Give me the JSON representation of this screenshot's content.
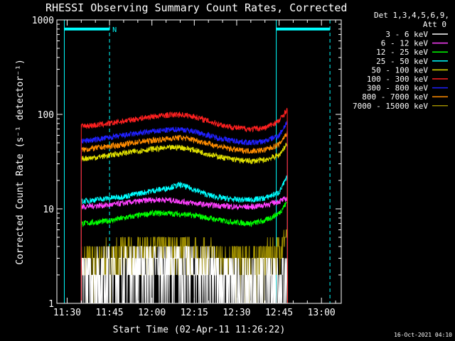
{
  "chart_data": {
    "type": "line",
    "title": "RHESSI Observing Summary Count Rates, Corrected",
    "xlabel": "Start Time (02-Apr-11 11:26:22)",
    "ylabel": "Corrected Count Rate (s⁻¹ detector⁻¹)",
    "yscale": "log",
    "ylim": [
      1,
      1000
    ],
    "xlim": [
      "11:26:22",
      "13:07:00"
    ],
    "x_ticks": [
      "11:30",
      "11:45",
      "12:00",
      "12:15",
      "12:30",
      "12:45",
      "13:00"
    ],
    "y_ticks": [
      "1",
      "10",
      "100",
      "1000"
    ],
    "legend_header": [
      "Det 1,3,4,5,6,9,",
      "Att 0"
    ],
    "legend_position": "right",
    "footer_timestamp": "16-Oct-2021 04:10",
    "annotations": [
      {
        "text": "N",
        "time": "11:45"
      }
    ],
    "markers": {
      "cyan_solid_lines": [
        "11:29",
        "12:44"
      ],
      "cyan_dashed_lines": [
        "11:45",
        "13:03"
      ],
      "data_interval": [
        "11:35",
        "12:48"
      ],
      "bar_level": 800,
      "bar_segments": [
        [
          "11:29",
          "11:45"
        ],
        [
          "12:44",
          "13:03"
        ]
      ]
    },
    "x": [
      "11:35",
      "11:40",
      "11:45",
      "11:50",
      "11:55",
      "12:00",
      "12:05",
      "12:10",
      "12:15",
      "12:20",
      "12:25",
      "12:30",
      "12:35",
      "12:40",
      "12:45",
      "12:48"
    ],
    "series": [
      {
        "name": "3 - 6 keV",
        "color": "#ffffff",
        "values": [
          2.0,
          2.0,
          2.2,
          2.4,
          2.5,
          2.6,
          2.6,
          2.5,
          2.4,
          2.2,
          1.8,
          1.6,
          1.6,
          1.7,
          2.0,
          2.3
        ]
      },
      {
        "name": "6 - 12 keV",
        "color": "#ff40ff",
        "values": [
          10.5,
          10.8,
          11.0,
          11.5,
          12.0,
          12.5,
          12.5,
          12.0,
          11.5,
          11.0,
          10.8,
          10.5,
          10.5,
          11.0,
          12.0,
          13.0
        ]
      },
      {
        "name": "12 - 25 keV",
        "color": "#00ff00",
        "values": [
          7.0,
          7.2,
          7.5,
          8.0,
          8.5,
          9.0,
          9.0,
          8.8,
          8.5,
          8.0,
          7.5,
          7.2,
          7.0,
          7.5,
          9.0,
          12.0
        ]
      },
      {
        "name": "25 - 50 keV",
        "color": "#00ffff",
        "values": [
          12.0,
          12.5,
          13.0,
          13.5,
          14.5,
          15.5,
          16.5,
          18.0,
          16.0,
          14.0,
          13.0,
          12.5,
          12.5,
          13.0,
          15.0,
          22.0
        ]
      },
      {
        "name": "50 - 100 keV",
        "color": "#e0e000",
        "values": [
          34,
          35,
          37,
          39,
          41,
          43,
          44,
          45,
          42,
          38,
          35,
          33,
          32,
          33,
          37,
          50
        ]
      },
      {
        "name": "100 - 300 keV",
        "color": "#ff2020",
        "values": [
          75,
          77,
          80,
          85,
          90,
          95,
          98,
          100,
          95,
          85,
          77,
          72,
          70,
          72,
          85,
          115
        ]
      },
      {
        "name": "300 - 800 keV",
        "color": "#2020ff",
        "values": [
          52,
          54,
          57,
          60,
          63,
          66,
          68,
          70,
          66,
          60,
          55,
          52,
          50,
          52,
          60,
          85
        ]
      },
      {
        "name": "800 - 7000 keV",
        "color": "#ff8c00",
        "values": [
          42,
          44,
          46,
          48,
          51,
          53,
          55,
          57,
          54,
          49,
          45,
          42,
          41,
          42,
          48,
          65
        ]
      },
      {
        "name": "7000 - 15000 keV",
        "color": "#9a8a00",
        "values": [
          2.5,
          2.8,
          3.0,
          3.3,
          3.6,
          3.8,
          3.8,
          3.6,
          3.4,
          3.2,
          3.0,
          2.8,
          2.7,
          3.0,
          3.6,
          5.5
        ]
      }
    ]
  }
}
